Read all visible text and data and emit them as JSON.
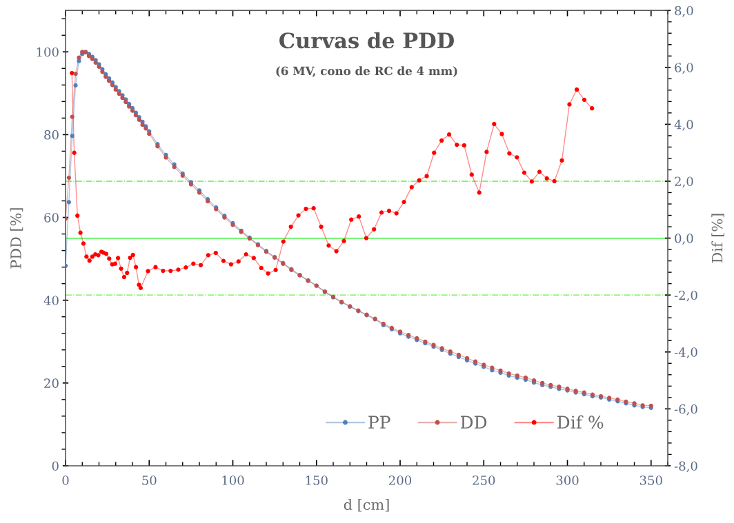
{
  "chart_data": {
    "type": "line",
    "title": "Curvas de PDD",
    "subtitle": "(6 MV, cono de RC de 4 mm)",
    "xlabel": "d [cm]",
    "ylabel": "PDD [%]",
    "y2label": "Dif [%]",
    "xlim": [
      0,
      360
    ],
    "xticks": [
      0,
      50,
      100,
      150,
      200,
      250,
      300,
      350
    ],
    "ylim": [
      0,
      110
    ],
    "yticks": [
      0,
      20,
      40,
      60,
      80,
      100
    ],
    "y2lim": [
      -8,
      8
    ],
    "y2ticks": [
      {
        "value": -8,
        "label": "-8,0"
      },
      {
        "value": -6,
        "label": "-6,0"
      },
      {
        "value": -4,
        "label": "-4,0"
      },
      {
        "value": -2,
        "label": "-2,0"
      },
      {
        "value": 0,
        "label": "0,0"
      },
      {
        "value": 2,
        "label": "2,0"
      },
      {
        "value": 4,
        "label": "4,0"
      },
      {
        "value": 6,
        "label": "6,0"
      },
      {
        "value": 8,
        "label": "8,0"
      }
    ],
    "marker": "circle",
    "line_style": "solid",
    "legend": "bottom right",
    "grid": false,
    "ref_lines": [
      {
        "axis": "y2",
        "value": 0,
        "color": "#00ee00",
        "line_style": "solid"
      },
      {
        "axis": "y2",
        "value": 2,
        "color": "#66ee44",
        "line_style": "dashdot"
      },
      {
        "axis": "y2",
        "value": -2,
        "color": "#66ee44",
        "line_style": "dashdot"
      }
    ],
    "x": [
      0,
      2,
      4,
      6,
      8,
      10,
      12,
      14,
      16,
      18,
      20,
      22,
      24,
      26,
      28,
      30,
      32,
      34,
      36,
      38,
      40,
      42,
      44,
      46,
      48,
      50,
      55,
      60,
      65,
      70,
      75,
      80,
      85,
      90,
      95,
      100,
      105,
      110,
      115,
      120,
      125,
      130,
      135,
      140,
      145,
      150,
      155,
      160,
      165,
      170,
      175,
      180,
      185,
      190,
      195,
      200,
      205,
      210,
      215,
      220,
      225,
      230,
      235,
      240,
      245,
      250,
      255,
      260,
      265,
      270,
      275,
      280,
      285,
      290,
      295,
      300,
      305,
      310,
      315,
      320,
      325,
      330,
      335,
      340,
      345,
      350
    ],
    "series": [
      {
        "name": "PP",
        "color": "#4f81bd",
        "values": [
          48.3,
          63.7,
          79.7,
          91.9,
          97.8,
          99.5,
          100,
          99.5,
          98.8,
          98.0,
          97.0,
          95.8,
          94.6,
          93.6,
          92.6,
          91.5,
          90.5,
          89.5,
          88.5,
          87.4,
          86.4,
          85.3,
          84.2,
          83.1,
          82.0,
          80.8,
          77.7,
          75.1,
          72.8,
          70.6,
          68.5,
          66.5,
          64.4,
          62.4,
          60.4,
          58.6,
          56.8,
          55.1,
          53.5,
          51.9,
          50.4,
          49.0,
          47.5,
          46.1,
          44.8,
          43.5,
          42.0,
          40.7,
          39.5,
          38.5,
          37.4,
          36.4,
          35.4,
          34.0,
          33.0,
          32.0,
          31.2,
          30.4,
          29.6,
          28.8,
          28.0,
          27.1,
          26.3,
          25.5,
          24.7,
          23.9,
          23.1,
          22.5,
          21.8,
          21.3,
          20.8,
          20.1,
          19.5,
          19.1,
          18.6,
          18.2,
          17.7,
          17.3,
          16.8,
          16.5,
          16.0,
          15.6,
          15.1,
          14.6,
          14.2,
          14.0
        ]
      },
      {
        "name": "DD",
        "color": "#c0504d",
        "values": [
          59.7,
          69.6,
          84.3,
          94.7,
          98.6,
          100,
          99.9,
          99.0,
          98.3,
          97.4,
          96.4,
          95.2,
          94.0,
          93.0,
          92.0,
          90.9,
          89.9,
          88.9,
          87.9,
          86.8,
          85.8,
          84.7,
          83.6,
          82.4,
          81.5,
          80.2,
          77.2,
          74.5,
          72.2,
          70.1,
          68.0,
          66.0,
          63.9,
          62.0,
          60.0,
          58.2,
          56.5,
          54.9,
          53.3,
          51.7,
          50.3,
          48.8,
          47.3,
          46.0,
          44.7,
          43.5,
          42.1,
          40.8,
          39.6,
          38.5,
          37.5,
          36.5,
          35.5,
          34.3,
          33.3,
          32.4,
          31.6,
          30.8,
          30.0,
          29.2,
          28.4,
          27.6,
          26.8,
          26.0,
          25.2,
          24.4,
          23.7,
          23.0,
          22.3,
          21.8,
          21.3,
          20.6,
          20.0,
          19.5,
          19.1,
          18.6,
          18.1,
          17.7,
          17.2,
          16.8,
          16.4,
          16.0,
          15.5,
          15.1,
          14.6,
          14.5
        ]
      },
      {
        "name": "Dif %",
        "color": "#ff0000",
        "axis": "y2",
        "x": [
          3.8,
          5.2,
          7.1,
          8.9,
          10.7,
          12.5,
          14.3,
          16.0,
          17.8,
          19.6,
          21.4,
          22.6,
          24.3,
          26.1,
          27.9,
          29.6,
          31.4,
          33.2,
          35.0,
          36.8,
          38.6,
          40.3,
          42.1,
          43.9,
          44.9,
          49.3,
          53.8,
          58.3,
          62.8,
          67.4,
          71.9,
          76.4,
          80.8,
          85.3,
          89.8,
          94.4,
          98.9,
          103.4,
          107.9,
          112.5,
          117.0,
          121.1,
          125.6,
          130.2,
          134.7,
          139.2,
          143.7,
          148.3,
          152.8,
          157.3,
          161.9,
          166.4,
          170.8,
          175.3,
          179.8,
          184.4,
          188.9,
          193.4,
          197.8,
          202.3,
          206.9,
          211.4,
          215.9,
          220.3,
          224.8,
          229.3,
          233.9,
          238.3,
          242.8,
          247.3,
          251.7,
          256.2,
          260.8,
          265.3,
          269.8,
          274.2,
          278.7,
          283.3,
          287.7,
          292.2,
          296.7,
          301.2,
          305.6,
          310.1,
          314.7
        ],
        "values": [
          5.8,
          3.0,
          0.79,
          0.19,
          -0.19,
          -0.65,
          -0.79,
          -0.65,
          -0.57,
          -0.6,
          -0.48,
          -0.51,
          -0.55,
          -0.72,
          -0.92,
          -0.9,
          -0.7,
          -1.07,
          -1.37,
          -1.22,
          -0.69,
          -0.59,
          -1.02,
          -1.64,
          -1.75,
          -1.16,
          -1.02,
          -1.15,
          -1.15,
          -1.11,
          -1.03,
          -0.9,
          -0.95,
          -0.6,
          -0.52,
          -0.8,
          -0.92,
          -0.82,
          -0.57,
          -0.7,
          -1.05,
          -1.24,
          -1.12,
          -0.12,
          0.4,
          0.8,
          1.03,
          1.05,
          0.4,
          -0.26,
          -0.46,
          -0.1,
          0.65,
          0.76,
          0.0,
          0.31,
          0.9,
          0.96,
          0.87,
          1.27,
          1.79,
          2.03,
          2.18,
          3.0,
          3.43,
          3.64,
          3.28,
          3.26,
          2.23,
          1.6,
          3.03,
          4.01,
          3.66,
          2.98,
          2.84,
          2.3,
          1.99,
          2.33,
          2.1,
          2.0,
          2.73,
          4.7,
          5.22,
          4.86,
          4.56
        ]
      }
    ]
  }
}
